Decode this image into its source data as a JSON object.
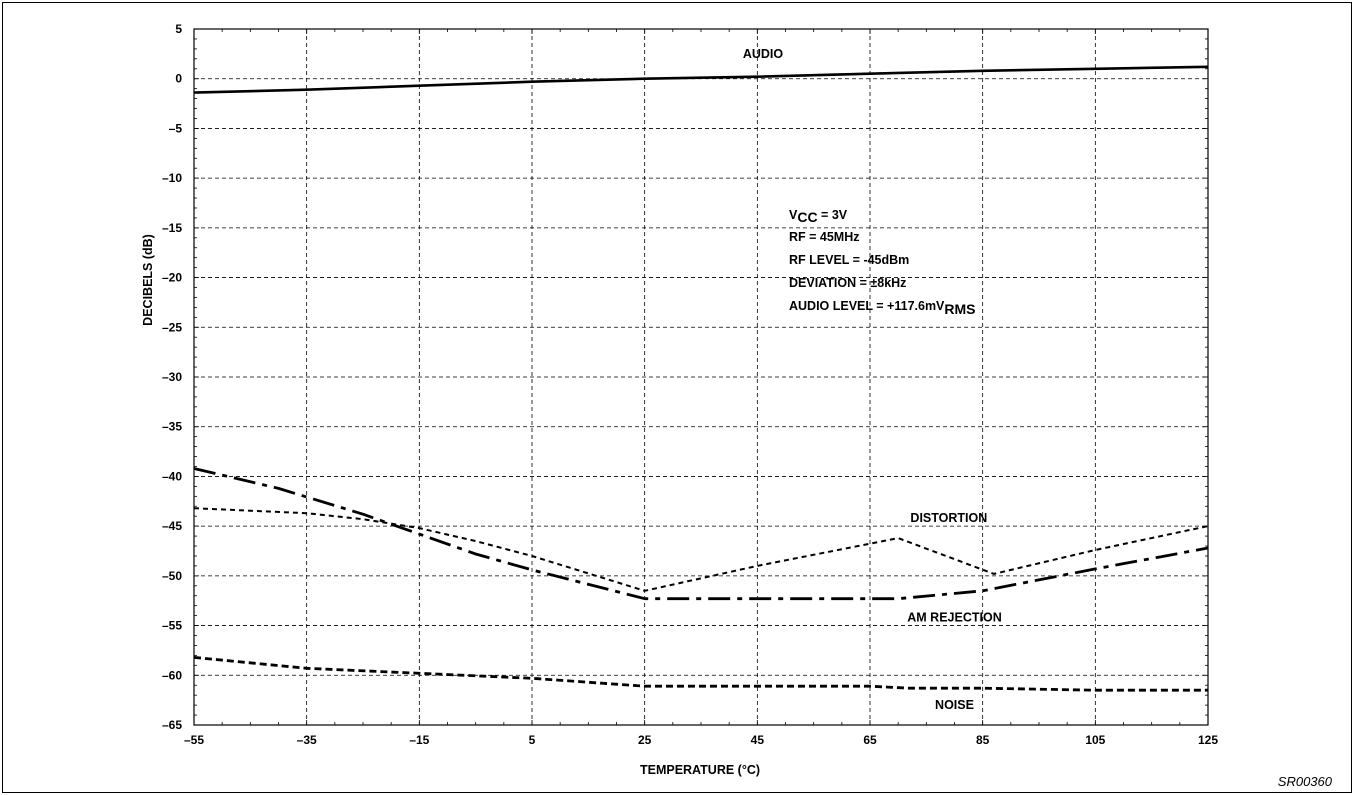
{
  "chart_data": {
    "type": "line",
    "xlabel": "TEMPERATURE (°C)",
    "ylabel": "DECIBELS (dB)",
    "xlim": [
      -55,
      125
    ],
    "ylim": [
      -65,
      5
    ],
    "x_ticks": [
      "–55",
      "–35",
      "–15",
      "5",
      "25",
      "45",
      "65",
      "85",
      "105",
      "125"
    ],
    "y_ticks": [
      "5",
      "0",
      "–5",
      "–10",
      "–15",
      "–20",
      "–25",
      "–30",
      "–35",
      "–40",
      "–45",
      "–50",
      "–55",
      "–60",
      "–65"
    ],
    "grid": true,
    "series": [
      {
        "name": "AUDIO",
        "style": "solid",
        "x": [
          -55,
          -35,
          -15,
          5,
          25,
          45,
          65,
          85,
          105,
          125
        ],
        "y": [
          -1.4,
          -1.1,
          -0.7,
          -0.3,
          0.0,
          0.2,
          0.5,
          0.8,
          1.0,
          1.2
        ]
      },
      {
        "name": "DISTORTION",
        "style": "dotted",
        "x": [
          -55,
          -35,
          -25,
          -15,
          -5,
          5,
          25,
          45,
          70,
          87,
          105,
          125
        ],
        "y": [
          -43.2,
          -43.7,
          -44.3,
          -45.2,
          -46.5,
          -48.0,
          -51.5,
          -49.0,
          -46.2,
          -49.8,
          -47.4,
          -45.0
        ]
      },
      {
        "name": "AM REJECTION",
        "style": "dash-dot",
        "x": [
          -55,
          -40,
          -25,
          -15,
          -5,
          5,
          25,
          45,
          70,
          85,
          105,
          125
        ],
        "y": [
          -39.2,
          -41.2,
          -43.8,
          -45.8,
          -47.8,
          -49.4,
          -52.3,
          -52.3,
          -52.3,
          -51.5,
          -49.3,
          -47.2
        ]
      },
      {
        "name": "NOISE",
        "style": "dashed",
        "x": [
          -55,
          -35,
          -15,
          5,
          25,
          45,
          65,
          72,
          85,
          105,
          125
        ],
        "y": [
          -58.2,
          -59.3,
          -59.8,
          -60.3,
          -61.1,
          -61.1,
          -61.1,
          -61.3,
          -61.3,
          -61.5,
          -61.5
        ]
      }
    ],
    "series_labels": [
      {
        "text": "AUDIO",
        "x": 46,
        "y": 2.1
      },
      {
        "text": "DISTORTION",
        "x": 79,
        "y": -44.6
      },
      {
        "text": "AM REJECTION",
        "x": 80,
        "y": -54.6
      },
      {
        "text": "NOISE",
        "x": 80,
        "y": -63.4
      }
    ],
    "conditions": {
      "line1_main": "V",
      "line1_sub": "CC",
      "line1_rest": " = 3V",
      "line2": "RF = 45MHz",
      "line3": "RF LEVEL = -45dBm",
      "line4": "DEVIATION = ±8kHz",
      "line5_main": "AUDIO LEVEL = +117.6mV",
      "line5_sub": "RMS"
    },
    "figure_id": "SR00360"
  }
}
